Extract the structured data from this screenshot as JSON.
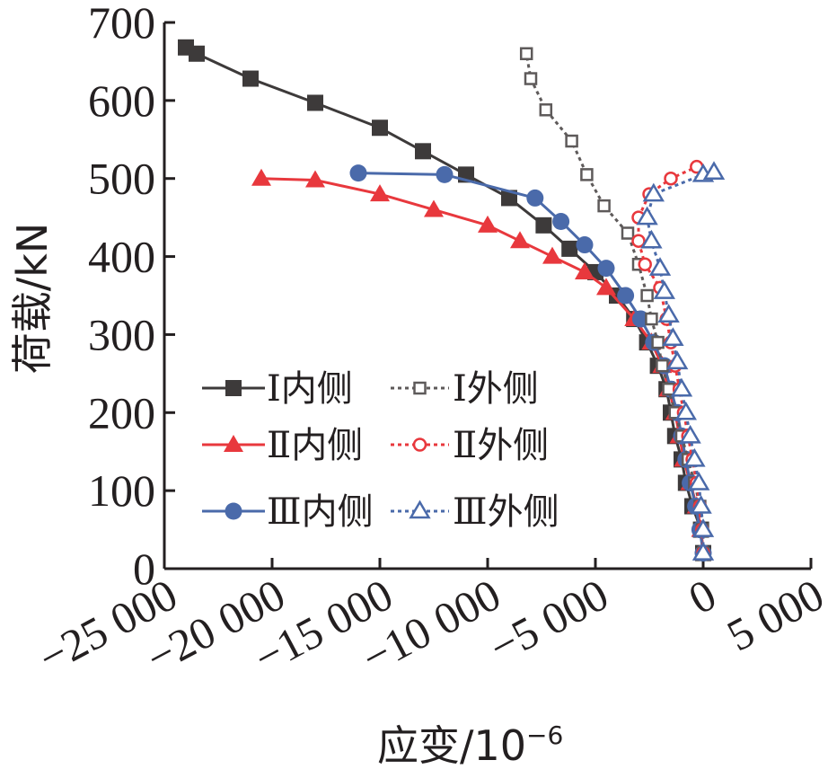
{
  "chart_data": {
    "type": "line",
    "title": "",
    "xlabel": "应变/10",
    "xlabel_exponent": "−6",
    "ylabel": "荷载/kN",
    "xlim": [
      -25000,
      5000
    ],
    "ylim": [
      0,
      700
    ],
    "xticks": [
      -25000,
      -20000,
      -15000,
      -10000,
      -5000,
      0,
      5000
    ],
    "xtick_labels": [
      "−25 000",
      "−20 000",
      "−15 000",
      "−10 000",
      "−5 000",
      "0",
      "5 000"
    ],
    "yticks": [
      0,
      100,
      200,
      300,
      400,
      500,
      600,
      700
    ],
    "ytick_labels": [
      "0",
      "100",
      "200",
      "300",
      "400",
      "500",
      "600",
      "700"
    ],
    "grid": false,
    "legend_position": "middle-left",
    "series": [
      {
        "name": "Ⅰ内侧",
        "color": "#3d3a3a",
        "marker": "square-filled",
        "dashed": false,
        "points": [
          [
            0,
            20
          ],
          [
            -100,
            50
          ],
          [
            -500,
            80
          ],
          [
            -800,
            110
          ],
          [
            -1000,
            140
          ],
          [
            -1300,
            170
          ],
          [
            -1500,
            200
          ],
          [
            -1700,
            230
          ],
          [
            -2100,
            260
          ],
          [
            -2600,
            290
          ],
          [
            -3200,
            320
          ],
          [
            -4000,
            350
          ],
          [
            -5000,
            380
          ],
          [
            -6200,
            410
          ],
          [
            -7400,
            440
          ],
          [
            -9000,
            475
          ],
          [
            -11000,
            505
          ],
          [
            -13000,
            535
          ],
          [
            -15000,
            565
          ],
          [
            -18000,
            597
          ],
          [
            -21000,
            628
          ],
          [
            -23500,
            660
          ],
          [
            -24000,
            668
          ]
        ]
      },
      {
        "name": "Ⅰ外侧",
        "color": "#5e5a5a",
        "marker": "square-open",
        "dashed": true,
        "points": [
          [
            0,
            20
          ],
          [
            -50,
            50
          ],
          [
            -150,
            80
          ],
          [
            -400,
            110
          ],
          [
            -700,
            140
          ],
          [
            -1000,
            170
          ],
          [
            -1300,
            200
          ],
          [
            -1600,
            230
          ],
          [
            -1900,
            260
          ],
          [
            -2100,
            290
          ],
          [
            -2400,
            320
          ],
          [
            -2600,
            350
          ],
          [
            -3000,
            390
          ],
          [
            -3500,
            430
          ],
          [
            -4600,
            465
          ],
          [
            -5400,
            505
          ],
          [
            -6100,
            548
          ],
          [
            -7300,
            588
          ],
          [
            -8000,
            628
          ],
          [
            -8200,
            660
          ]
        ]
      },
      {
        "name": "Ⅱ内侧",
        "color": "#e8383d",
        "marker": "triangle-filled",
        "dashed": false,
        "points": [
          [
            0,
            20
          ],
          [
            -100,
            50
          ],
          [
            -300,
            80
          ],
          [
            -600,
            110
          ],
          [
            -900,
            140
          ],
          [
            -1100,
            170
          ],
          [
            -1300,
            200
          ],
          [
            -1600,
            230
          ],
          [
            -1900,
            260
          ],
          [
            -2400,
            290
          ],
          [
            -3200,
            320
          ],
          [
            -4500,
            360
          ],
          [
            -5500,
            380
          ],
          [
            -7000,
            400
          ],
          [
            -8500,
            420
          ],
          [
            -10000,
            440
          ],
          [
            -12500,
            460
          ],
          [
            -15000,
            480
          ],
          [
            -18000,
            498
          ],
          [
            -20500,
            500
          ]
        ]
      },
      {
        "name": "Ⅱ外侧",
        "color": "#e8383d",
        "marker": "circle-open",
        "dashed": true,
        "points": [
          [
            0,
            20
          ],
          [
            -50,
            50
          ],
          [
            -150,
            80
          ],
          [
            -300,
            110
          ],
          [
            -500,
            140
          ],
          [
            -700,
            170
          ],
          [
            -900,
            200
          ],
          [
            -1100,
            230
          ],
          [
            -1300,
            260
          ],
          [
            -1500,
            290
          ],
          [
            -1700,
            320
          ],
          [
            -2000,
            360
          ],
          [
            -2700,
            390
          ],
          [
            -3000,
            420
          ],
          [
            -3000,
            450
          ],
          [
            -2500,
            480
          ],
          [
            -1500,
            500
          ],
          [
            -300,
            515
          ]
        ]
      },
      {
        "name": "Ⅲ内侧",
        "color": "#4a6aaa",
        "marker": "circle-filled",
        "dashed": false,
        "points": [
          [
            0,
            20
          ],
          [
            -150,
            50
          ],
          [
            -350,
            80
          ],
          [
            -600,
            110
          ],
          [
            -800,
            140
          ],
          [
            -1000,
            170
          ],
          [
            -1200,
            200
          ],
          [
            -1500,
            230
          ],
          [
            -1800,
            260
          ],
          [
            -2300,
            290
          ],
          [
            -2900,
            320
          ],
          [
            -3600,
            350
          ],
          [
            -4500,
            385
          ],
          [
            -5500,
            415
          ],
          [
            -6600,
            445
          ],
          [
            -7800,
            475
          ],
          [
            -12000,
            505
          ],
          [
            -16000,
            507
          ]
        ]
      },
      {
        "name": "Ⅲ外侧",
        "color": "#4a6aaa",
        "marker": "triangle-open",
        "dashed": true,
        "points": [
          [
            0,
            20
          ],
          [
            0,
            50
          ],
          [
            -100,
            80
          ],
          [
            -200,
            110
          ],
          [
            -400,
            140
          ],
          [
            -600,
            170
          ],
          [
            -800,
            200
          ],
          [
            -1000,
            230
          ],
          [
            -1200,
            265
          ],
          [
            -1400,
            295
          ],
          [
            -1600,
            325
          ],
          [
            -1800,
            355
          ],
          [
            -2000,
            385
          ],
          [
            -2400,
            420
          ],
          [
            -2600,
            450
          ],
          [
            -2300,
            480
          ],
          [
            0,
            505
          ],
          [
            500,
            508
          ]
        ]
      }
    ]
  }
}
